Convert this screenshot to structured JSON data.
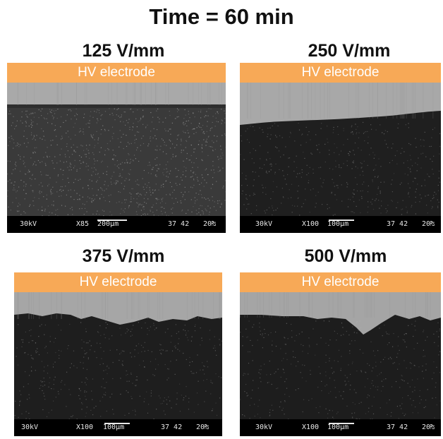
{
  "title": "Time = 60 min",
  "panels": [
    {
      "label": "125 V/mm",
      "electrode": "HV electrode",
      "sem": {
        "kv": "30kV",
        "mag": "X85",
        "scale": "200µm",
        "id": "37 42",
        "code": "20₧"
      }
    },
    {
      "label": "250 V/mm",
      "electrode": "HV electrode",
      "sem": {
        "kv": "30kV",
        "mag": "X100",
        "scale": "100µm",
        "id": "37 42",
        "code": "20₧"
      }
    },
    {
      "label": "375 V/mm",
      "electrode": "HV electrode",
      "sem": {
        "kv": "30kV",
        "mag": "X100",
        "scale": "100µm",
        "id": "37 42",
        "code": "20₧"
      }
    },
    {
      "label": "500 V/mm",
      "electrode": "HV electrode",
      "sem": {
        "kv": "30kV",
        "mag": "X100",
        "scale": "100µm",
        "id": "37 42",
        "code": "20₧"
      }
    }
  ],
  "colors": {
    "electrode": "#f7a957",
    "electrode_text": "#ffffff"
  }
}
